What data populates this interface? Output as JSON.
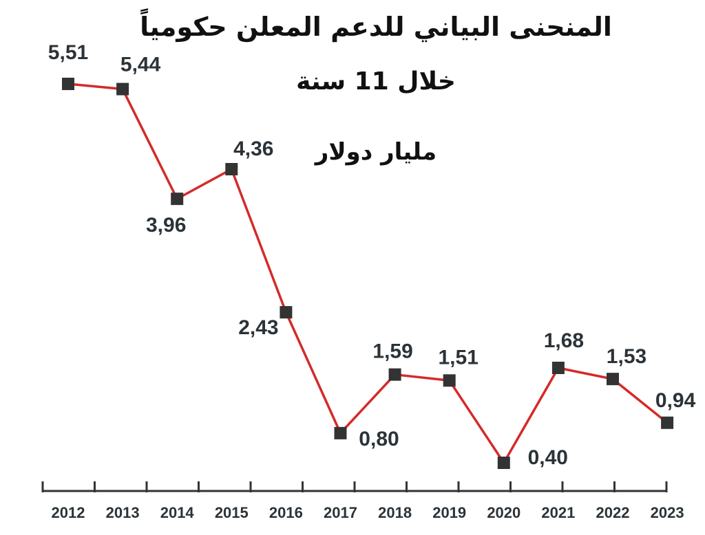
{
  "chart_data": {
    "type": "line",
    "title": "المنحنى البياني للدعم المعلن حكومياً",
    "subtitle": "خلال 11 سنة",
    "ylabel": "مليار دولار",
    "xlabel": "",
    "categories": [
      "2012",
      "2013",
      "2014",
      "2015",
      "2016",
      "2017",
      "2018",
      "2019",
      "2020",
      "2021",
      "2022",
      "2023"
    ],
    "values": [
      5.51,
      5.44,
      3.96,
      4.36,
      2.43,
      0.8,
      1.59,
      1.51,
      0.4,
      1.68,
      1.53,
      0.94
    ],
    "value_labels": [
      "5,51",
      "5,44",
      "3,96",
      "4,36",
      "2,43",
      "0,80",
      "1,59",
      "1,51",
      "0,40",
      "1,68",
      "1,53",
      "0,94"
    ],
    "ylim": [
      0,
      6
    ],
    "grid": false,
    "legend": "none",
    "line_color": "#d42a2a",
    "marker_color": "#333333",
    "axis_color": "#333333",
    "text_color": "#2b3338"
  }
}
